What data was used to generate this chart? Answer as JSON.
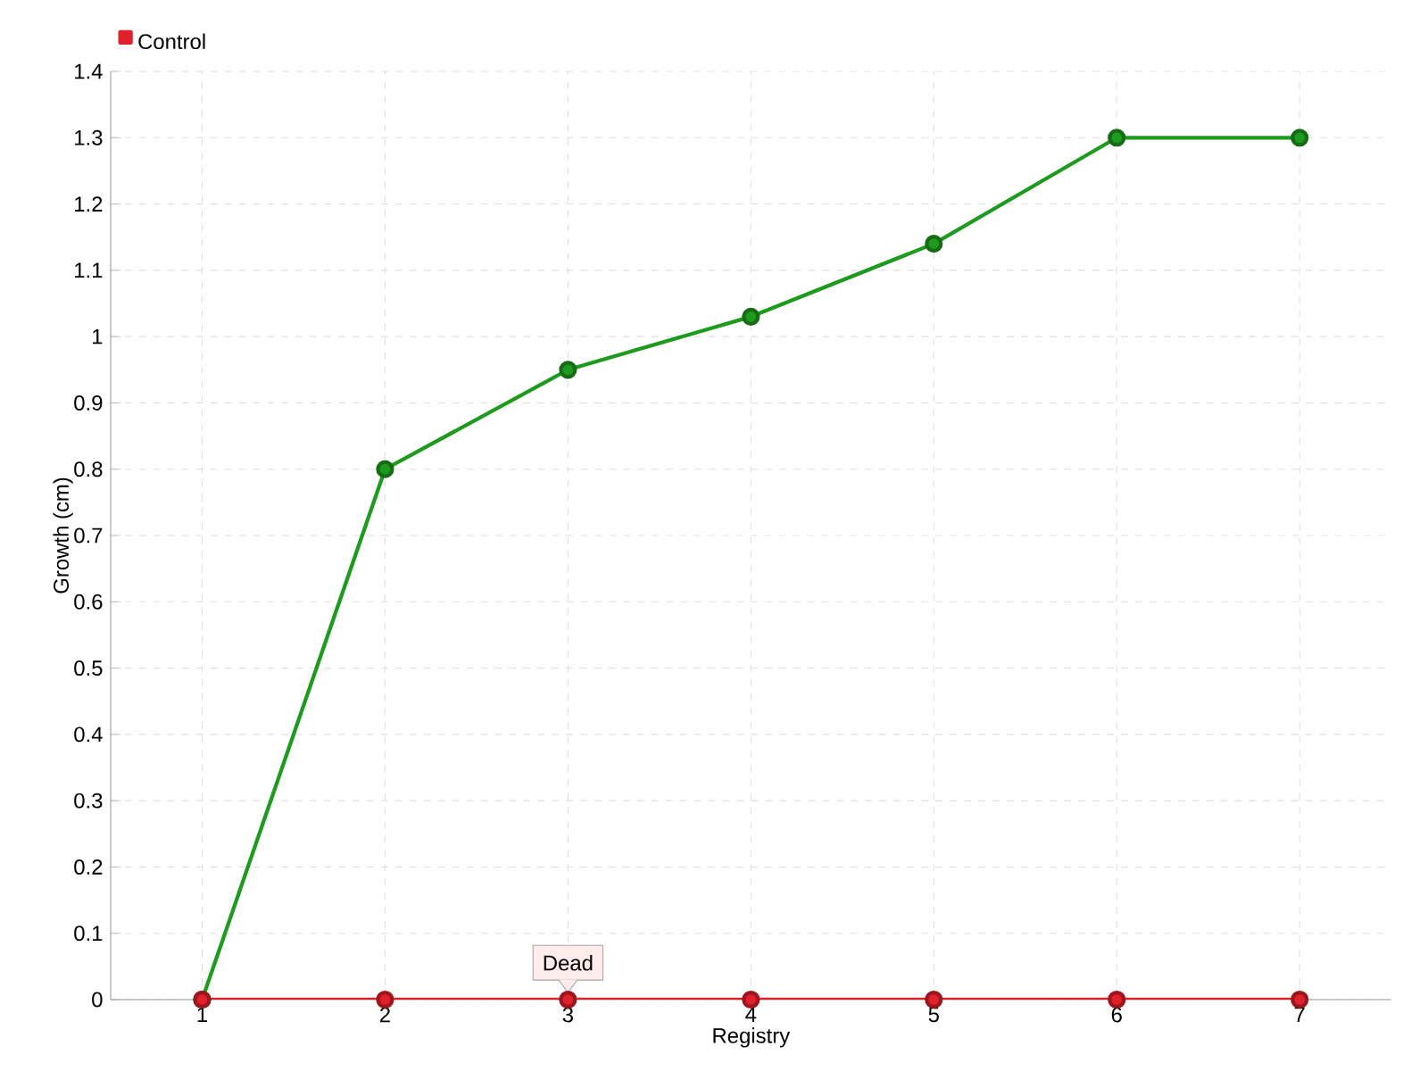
{
  "chart_data": {
    "type": "line",
    "xlabel": "Registry",
    "ylabel": "Growth (cm)",
    "x": [
      1,
      2,
      3,
      4,
      5,
      6,
      7
    ],
    "series": [
      {
        "color": "#1e9a1e",
        "values": [
          0,
          0.8,
          0.95,
          1.03,
          1.14,
          1.3,
          1.3
        ]
      },
      {
        "name": "Control",
        "color": "#e0202a",
        "values": [
          0,
          0,
          0,
          0,
          0,
          0,
          0
        ]
      }
    ],
    "xlim": [
      0.5,
      7.5
    ],
    "xticks": [
      1,
      2,
      3,
      4,
      5,
      6,
      7
    ],
    "ylim": [
      0,
      1.4
    ],
    "yticks": [
      0,
      0.1,
      0.2,
      0.3,
      0.4,
      0.5,
      0.6,
      0.7,
      0.8,
      0.9,
      1,
      1.1,
      1.2,
      1.3,
      1.4
    ],
    "annotations": [
      {
        "text": "Dead",
        "x": 3,
        "y": 0
      }
    ],
    "grid": true,
    "legend": "top left",
    "marker": "circle",
    "line_style": "solid"
  }
}
